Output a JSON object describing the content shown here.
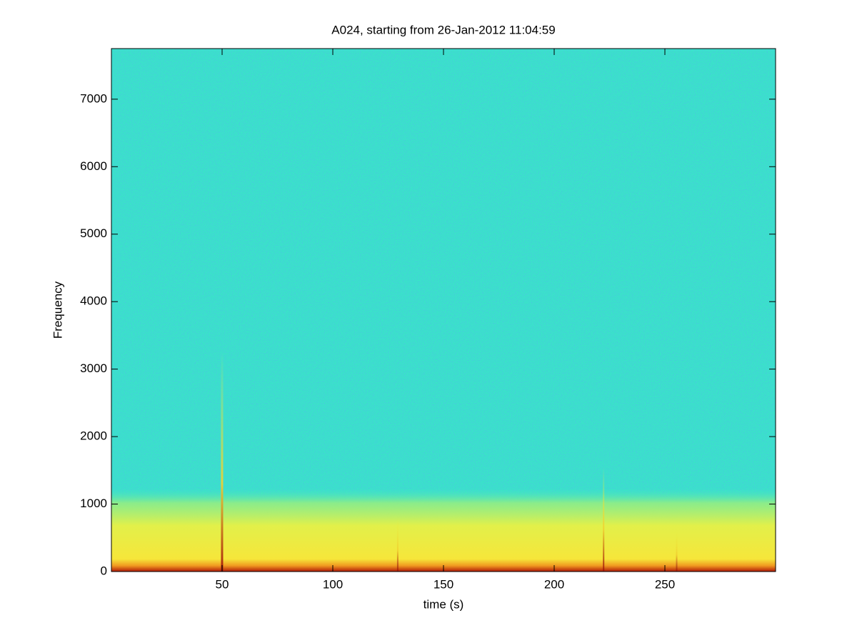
{
  "chart_data": {
    "type": "spectrogram",
    "title": "A024, starting from 26-Jan-2012 11:04:59",
    "xlabel": "time (s)",
    "ylabel": "Frequency",
    "xlim": [
      0,
      300
    ],
    "ylim": [
      0,
      7750
    ],
    "xticks": [
      50,
      100,
      150,
      200,
      250
    ],
    "yticks": [
      0,
      1000,
      2000,
      3000,
      4000,
      5000,
      6000,
      7000
    ]
  }
}
